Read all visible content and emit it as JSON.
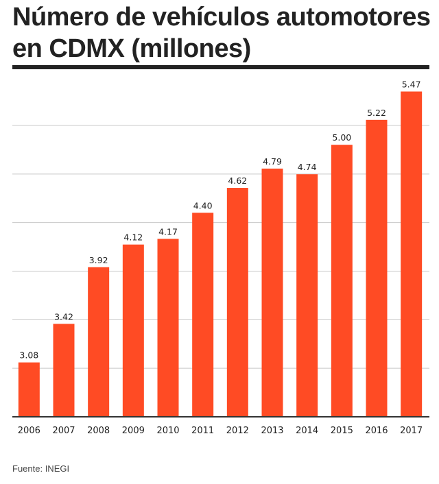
{
  "title": "Número de vehículos automotores en CDMX (millones)",
  "source": "Fuente: INEGI",
  "colors": {
    "bar": "#ff4b24",
    "grid": "#c8c8c8",
    "axis": "#333333",
    "text": "#222222"
  },
  "chart_data": {
    "type": "bar",
    "title": "Número de vehículos automotores en CDMX (millones)",
    "categories": [
      "2006",
      "2007",
      "2008",
      "2009",
      "2010",
      "2011",
      "2012",
      "2013",
      "2014",
      "2015",
      "2016",
      "2017"
    ],
    "values": [
      3.08,
      3.42,
      3.92,
      4.12,
      4.17,
      4.4,
      4.62,
      4.79,
      4.74,
      5.0,
      5.22,
      5.47
    ],
    "value_labels": [
      "3.08",
      "3.42",
      "3.92",
      "4.12",
      "4.17",
      "4.40",
      "4.62",
      "4.79",
      "4.74",
      "5.00",
      "5.22",
      "5.47"
    ],
    "xlabel": "",
    "ylabel": "",
    "ylim": [
      2.6,
      5.6
    ],
    "grid": true,
    "legend": "none"
  }
}
